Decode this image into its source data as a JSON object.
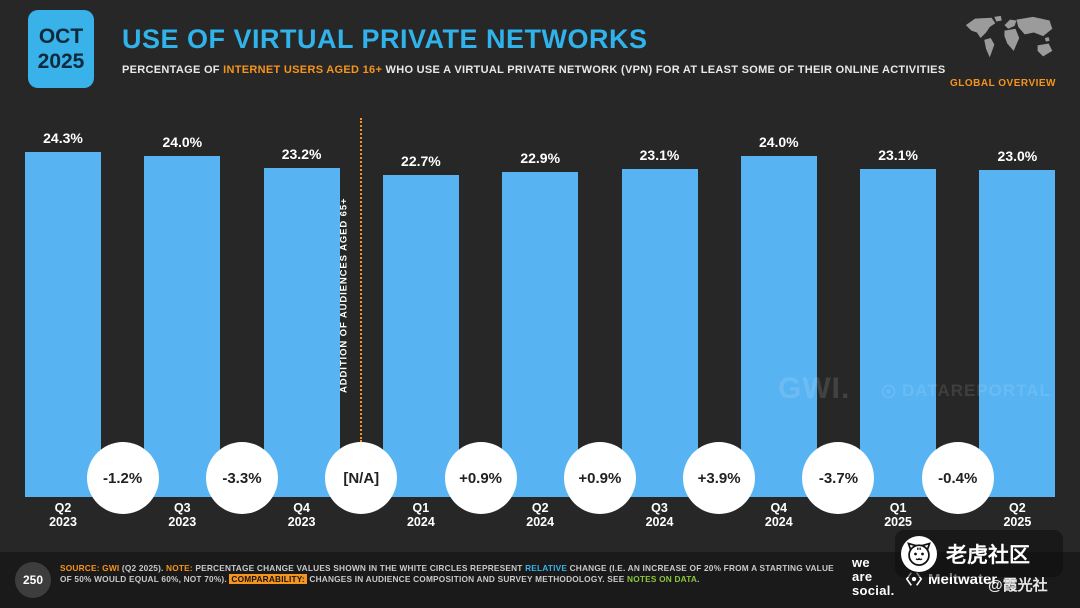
{
  "badge": {
    "month": "OCT",
    "year": "2025"
  },
  "header": {
    "title": "USE OF VIRTUAL PRIVATE NETWORKS",
    "subtitle": {
      "pre": "PERCENTAGE OF ",
      "highlight": "INTERNET USERS AGED 16+",
      "post": " WHO USE A VIRTUAL PRIVATE NETWORK (VPN) FOR AT LEAST SOME OF THEIR ONLINE ACTIVITIES"
    },
    "region_label": "GLOBAL OVERVIEW"
  },
  "chart_data": {
    "type": "bar",
    "categories": [
      "Q2 2023",
      "Q3 2023",
      "Q4 2023",
      "Q1 2024",
      "Q2 2024",
      "Q3 2024",
      "Q4 2024",
      "Q1 2025",
      "Q2 2025"
    ],
    "values": [
      24.3,
      24.0,
      23.2,
      22.7,
      22.9,
      23.1,
      24.0,
      23.1,
      23.0
    ],
    "value_labels": [
      "24.3%",
      "24.0%",
      "23.2%",
      "22.7%",
      "22.9%",
      "23.1%",
      "24.0%",
      "23.1%",
      "23.0%"
    ],
    "value_suffix": "%",
    "change_labels": [
      "-1.2%",
      "-3.3%",
      "[N/A]",
      "+0.9%",
      "+0.9%",
      "+3.9%",
      "-3.7%",
      "-0.4%"
    ],
    "annotation": {
      "text": "ADDITION OF AUDIENCES AGED 65+",
      "between": [
        "Q4 2023",
        "Q1 2024"
      ]
    },
    "ylim": [
      0,
      25
    ],
    "grid": false,
    "legend": "none",
    "bar_color": "#57b3f2"
  },
  "watermarks": {
    "gwi": "GWI.",
    "datareportal": "DATAREPORTAL",
    "community": "老虎社区",
    "handle": "@霞光社"
  },
  "footer": {
    "page_number": "250",
    "note_segments": [
      {
        "text": "SOURCE: ",
        "style": "orange"
      },
      {
        "text": "GWI",
        "style": "orange"
      },
      {
        "text": " (Q2 2025). ",
        "style": "white"
      },
      {
        "text": "NOTE: ",
        "style": "orange"
      },
      {
        "text": "PERCENTAGE CHANGE VALUES SHOWN IN THE WHITE CIRCLES REPRESENT ",
        "style": "white"
      },
      {
        "text": "RELATIVE",
        "style": "blue"
      },
      {
        "text": " CHANGE (I.E. AN INCREASE OF 20% FROM A STARTING VALUE OF 50% WOULD EQUAL 60%, NOT 70%). ",
        "style": "white"
      },
      {
        "text": "COMPARABILITY:",
        "style": "highlight"
      },
      {
        "text": " CHANGES IN AUDIENCE COMPOSITION AND SURVEY METHODOLOGY. SEE ",
        "style": "white"
      },
      {
        "text": "NOTES ON DATA",
        "style": "green"
      },
      {
        "text": ".",
        "style": "white"
      }
    ],
    "brands": {
      "we_are_social": [
        "we",
        "are",
        "social."
      ],
      "meltwater": "Meltwater"
    }
  },
  "colors": {
    "accent_blue": "#2fb3ea",
    "accent_orange": "#f7941d",
    "bar_blue": "#57b3f2",
    "green": "#8dc63f",
    "background": "#272727",
    "footer_background": "#1a1a1a"
  }
}
